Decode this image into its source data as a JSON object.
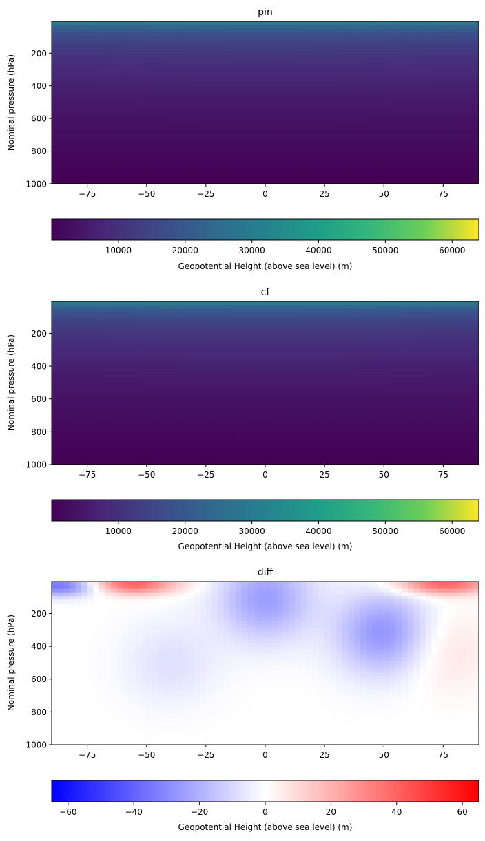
{
  "chart_data": [
    {
      "type": "heatmap",
      "title": "pin",
      "xlabel": "",
      "ylabel": "Nominal pressure (hPa)",
      "xlim": [
        -90,
        90
      ],
      "ylim": [
        1000,
        5
      ],
      "x_ticks": [
        -75,
        -50,
        -25,
        0,
        25,
        50,
        75
      ],
      "y_ticks": [
        200,
        400,
        600,
        800,
        1000
      ],
      "colormap": "viridis",
      "field": "geopotential height rises with altitude: ~100 m near 1000 hPa to ~28000 m at the top level; slightly higher near the equator",
      "colorbar": {
        "label": "Geopotential Height (above sea level) (m)",
        "range": [
          0,
          64000
        ],
        "ticks": [
          10000,
          20000,
          30000,
          40000,
          50000,
          60000
        ]
      }
    },
    {
      "type": "heatmap",
      "title": "cf",
      "xlabel": "",
      "ylabel": "Nominal pressure (hPa)",
      "xlim": [
        -90,
        90
      ],
      "ylim": [
        1000,
        5
      ],
      "x_ticks": [
        -75,
        -50,
        -25,
        0,
        25,
        50,
        75
      ],
      "y_ticks": [
        200,
        400,
        600,
        800,
        1000
      ],
      "colormap": "viridis",
      "field": "geopotential height rises with altitude: ~100 m near 1000 hPa to ~28000 m at the top level; slightly higher near the equator",
      "colorbar": {
        "label": "Geopotential Height (above sea level) (m)",
        "range": [
          0,
          64000
        ],
        "ticks": [
          10000,
          20000,
          30000,
          40000,
          50000,
          60000
        ]
      }
    },
    {
      "type": "heatmap",
      "title": "diff",
      "xlabel": "",
      "ylabel": "Nominal pressure (hPa)",
      "xlim": [
        -90,
        90
      ],
      "ylim": [
        1000,
        5
      ],
      "x_ticks": [
        -75,
        -50,
        -25,
        0,
        25,
        50,
        75
      ],
      "y_ticks": [
        200,
        400,
        600,
        800,
        1000
      ],
      "colormap": "bwr",
      "features": [
        {
          "lat": -58,
          "plev": 20,
          "value": 45
        },
        {
          "lat": 75,
          "plev": 20,
          "value": 40
        },
        {
          "lat": -85,
          "plev": 30,
          "value": -40
        },
        {
          "lat": 0,
          "plev": 110,
          "value": -25
        },
        {
          "lat": 50,
          "plev": 320,
          "value": -28
        },
        {
          "lat": 75,
          "plev": 420,
          "value": 8
        },
        {
          "lat": -40,
          "plev": 500,
          "value": -8
        }
      ],
      "colorbar": {
        "label": "Geopotential Height (above sea level) (m)",
        "range": [
          -65,
          65
        ],
        "ticks": [
          -60,
          -40,
          -20,
          0,
          20,
          40,
          60
        ]
      }
    }
  ]
}
